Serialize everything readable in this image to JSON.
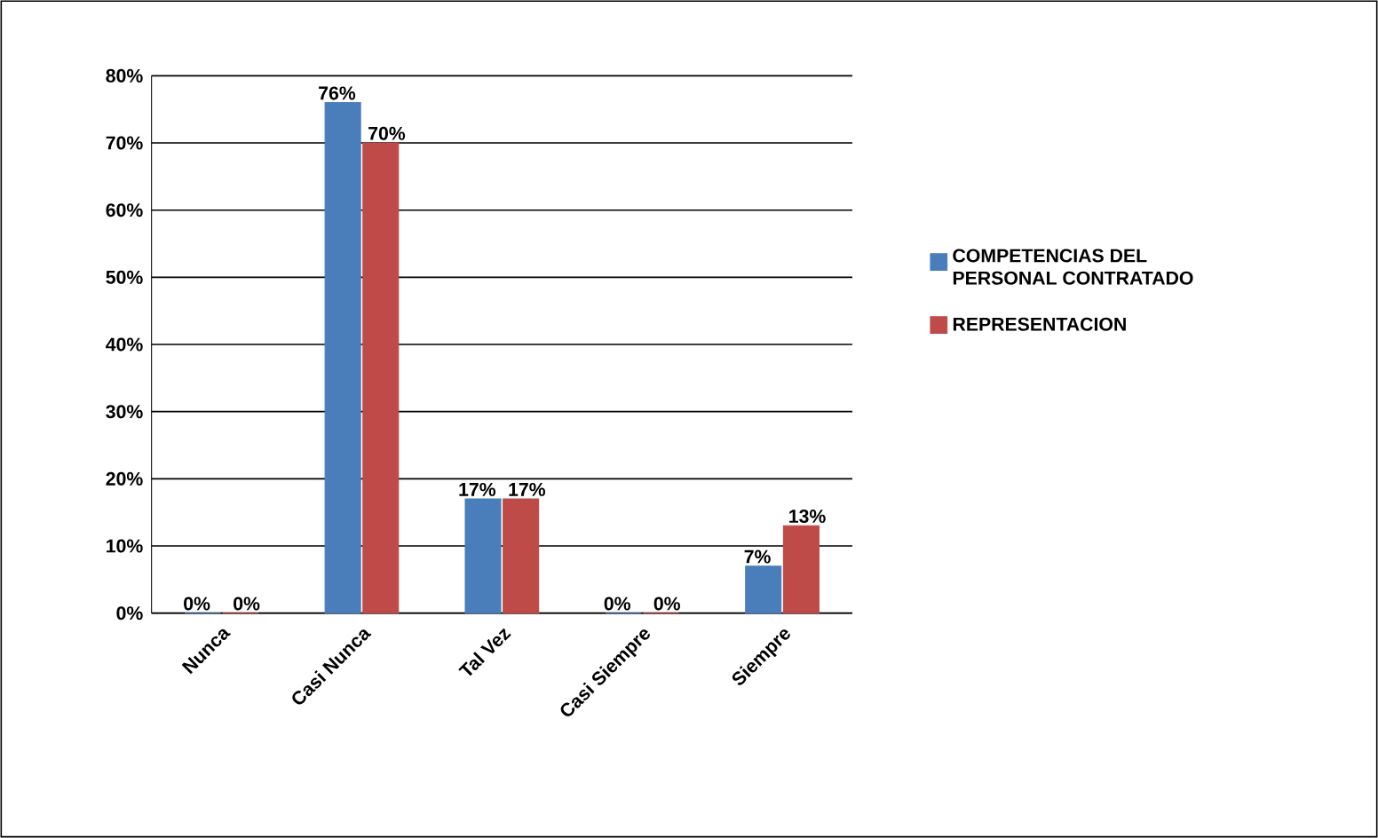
{
  "chart_data": {
    "type": "bar",
    "categories": [
      "Nunca",
      "Casi Nunca",
      "Tal Vez",
      "Casi Siempre",
      "Siempre"
    ],
    "series": [
      {
        "name": "COMPETENCIAS DEL PERSONAL CONTRATADO",
        "color": "#4a7ebb",
        "values": [
          0,
          76,
          17,
          0,
          7
        ],
        "value_labels": [
          "0%",
          "76%",
          "17%",
          "0%",
          "7%"
        ]
      },
      {
        "name": "REPRESENTACION",
        "color": "#be4b48",
        "values": [
          0,
          70,
          17,
          0,
          13
        ],
        "value_labels": [
          "0%",
          "70%",
          "17%",
          "0%",
          "13%"
        ]
      }
    ],
    "ylim": [
      0,
      80
    ],
    "yticks": [
      {
        "value": 0,
        "label": "0%"
      },
      {
        "value": 10,
        "label": "10%"
      },
      {
        "value": 20,
        "label": "20%"
      },
      {
        "value": 30,
        "label": "30%"
      },
      {
        "value": 40,
        "label": "40%"
      },
      {
        "value": 50,
        "label": "50%"
      },
      {
        "value": 60,
        "label": "60%"
      },
      {
        "value": 70,
        "label": "70%"
      },
      {
        "value": 80,
        "label": "80%"
      }
    ],
    "grid": "y",
    "legend": "right"
  }
}
